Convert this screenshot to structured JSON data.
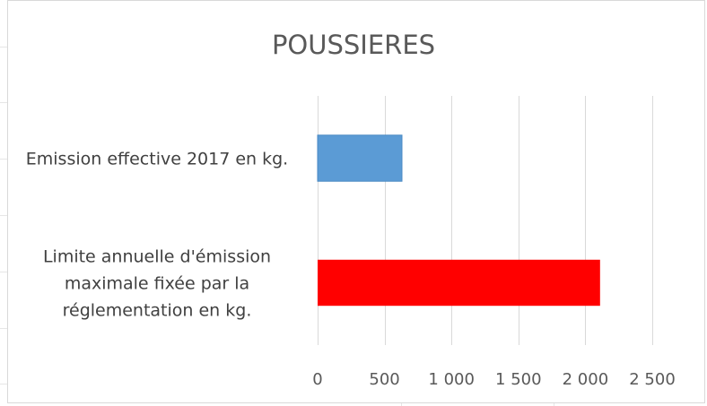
{
  "chart_data": {
    "type": "bar",
    "orientation": "horizontal",
    "title": "POUSSIERES",
    "categories": [
      [
        "Emission effective 2017 en kg."
      ],
      [
        "Limite annuelle d'émission",
        "maximale fixée par la",
        "réglementation en kg."
      ]
    ],
    "values": [
      630,
      2110
    ],
    "bar_colors": [
      "#5b9bd5",
      "#ff0000"
    ],
    "xlim": [
      0,
      2500
    ],
    "xticks": [
      0,
      500,
      1000,
      1500,
      2000,
      2500
    ],
    "xtick_labels": [
      "0",
      "500",
      "1 000",
      "1 500",
      "2 000",
      "2 500"
    ],
    "xlabel": "",
    "ylabel": "",
    "grid": "vertical",
    "legend": "none"
  }
}
